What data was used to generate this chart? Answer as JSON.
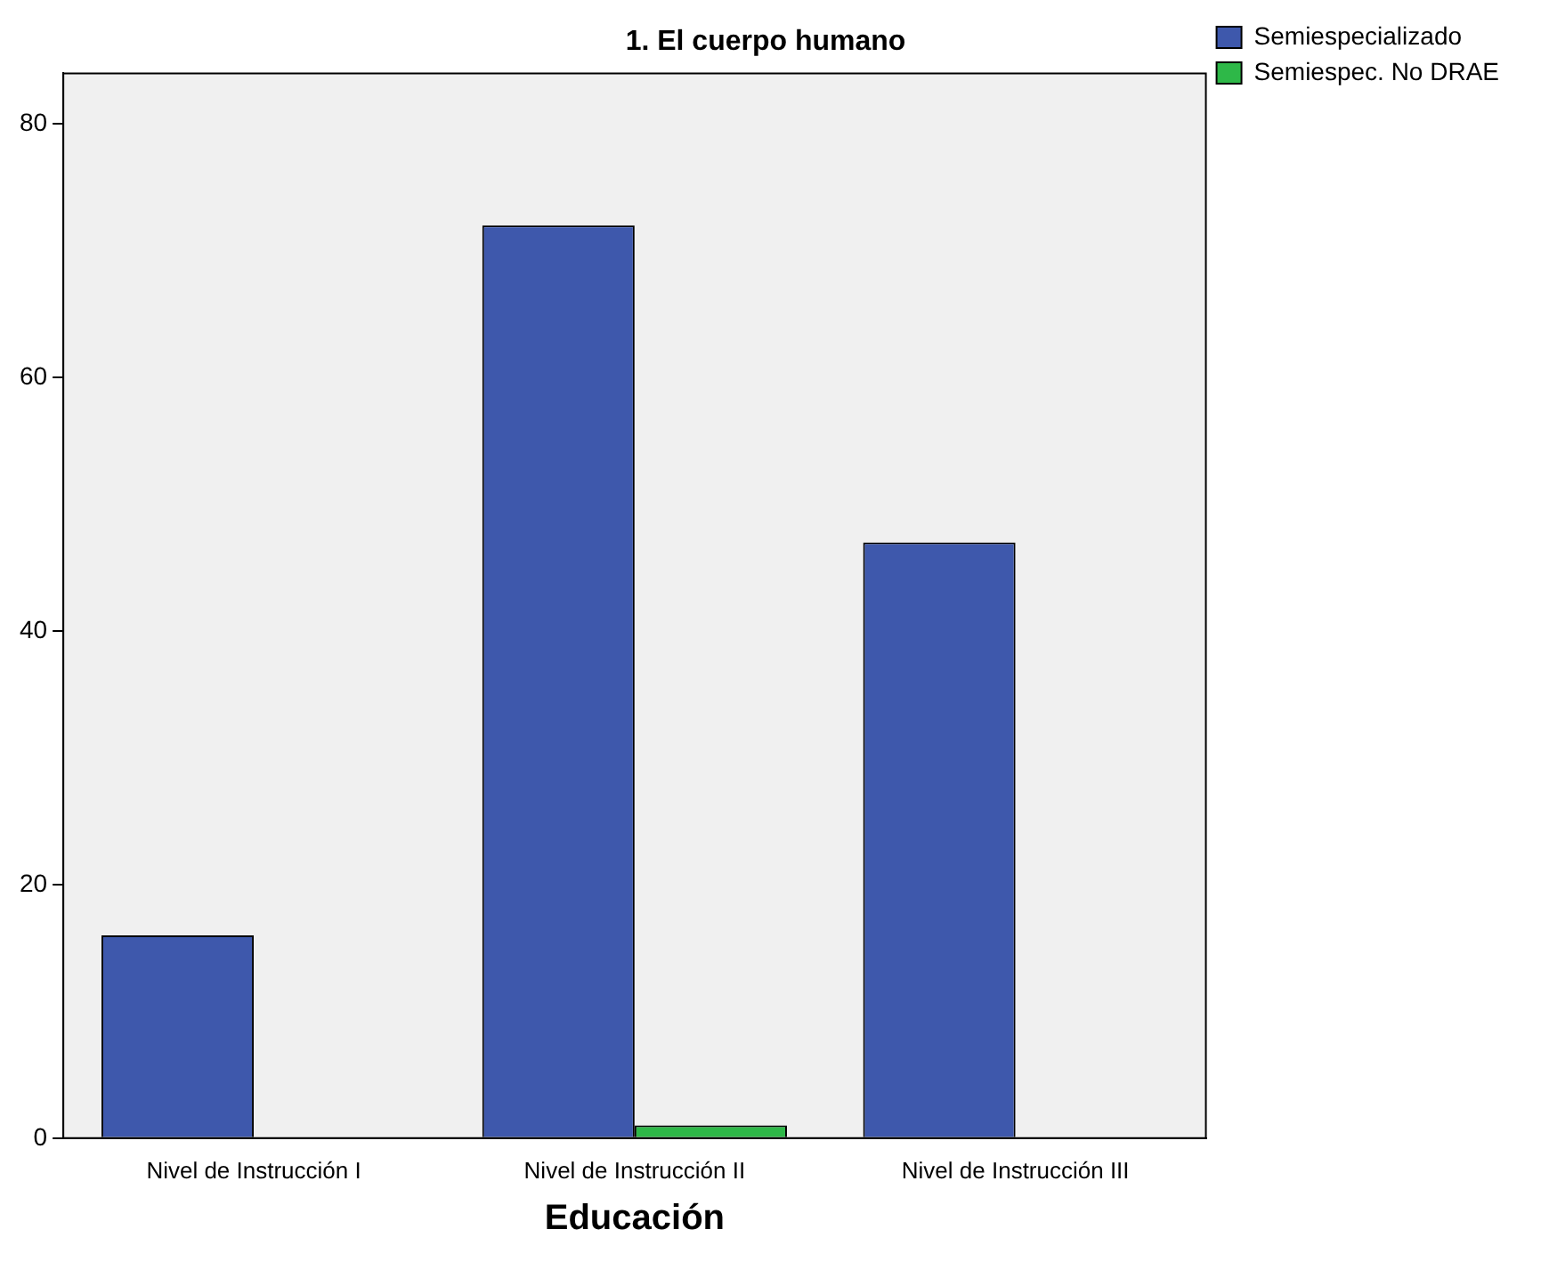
{
  "chart_data": {
    "type": "bar",
    "title": "1. El cuerpo humano",
    "xlabel": "Educación",
    "categories": [
      "Nivel de Instrucción I",
      "Nivel de Instrucción II",
      "Nivel de Instrucción III"
    ],
    "series": [
      {
        "name": "Semiespecializado",
        "color": "#3e58ac",
        "values": [
          16,
          72,
          47
        ]
      },
      {
        "name": "Semiespec. No DRAE",
        "color": "#2eb848",
        "values": [
          null,
          1,
          null
        ]
      }
    ],
    "ylim": [
      0,
      84
    ],
    "yticks": [
      0,
      20,
      40,
      60,
      80
    ],
    "grid": false,
    "legend": "top right"
  }
}
